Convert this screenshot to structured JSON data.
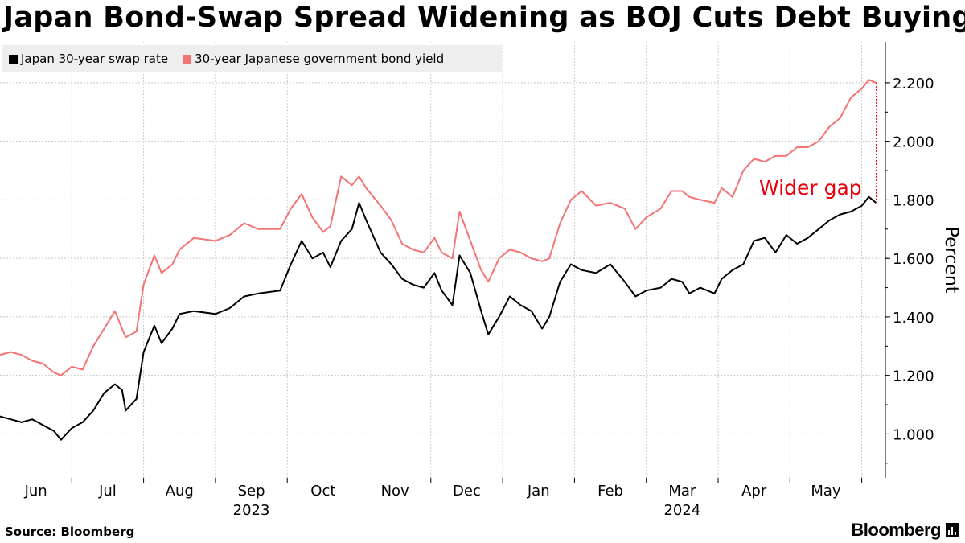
{
  "title": "Japan Bond-Swap Spread Widening as BOJ Cuts Debt Buying",
  "source": "Source: Bloomberg",
  "brand": "Bloomberg",
  "icons": {
    "brand": "bar-chart-icon"
  },
  "colors": {
    "swap": "#000000",
    "jgb": "#f47373",
    "annotation": "#e8000b",
    "grid": "#c8c8c8",
    "legend_bg": "#eeeeee"
  },
  "chart_data": {
    "type": "line",
    "title": "Japan Bond-Swap Spread Widening as BOJ Cuts Debt Buying",
    "ylabel": "Percent",
    "xlabel": "",
    "ylim": [
      0.85,
      2.34
    ],
    "x_range": [
      0,
      12.3
    ],
    "yticks": [
      1.0,
      1.2,
      1.4,
      1.6,
      1.8,
      2.0,
      2.2
    ],
    "ytick_labels": [
      "1.000",
      "1.200",
      "1.400",
      "1.600",
      "1.800",
      "2.000",
      "2.200"
    ],
    "months": [
      "Jun",
      "Jul",
      "Aug",
      "Sep",
      "Oct",
      "Nov",
      "Dec",
      "Jan",
      "Feb",
      "Mar",
      "Apr",
      "May"
    ],
    "years": [
      {
        "label": "2023",
        "month_index": 3
      },
      {
        "label": "2024",
        "month_index": 9
      }
    ],
    "legend": [
      "Japan 30-year swap rate",
      "30-year Japanese government bond yield"
    ],
    "annotation": {
      "text": "Wider gap",
      "x": 12.2,
      "y_top": 2.2,
      "y_bottom": 1.79
    },
    "series": [
      {
        "name": "Japan 30-year swap rate",
        "points": [
          [
            0,
            1.06
          ],
          [
            0.15,
            1.05
          ],
          [
            0.3,
            1.04
          ],
          [
            0.45,
            1.05
          ],
          [
            0.6,
            1.03
          ],
          [
            0.75,
            1.01
          ],
          [
            0.85,
            0.98
          ],
          [
            1.0,
            1.02
          ],
          [
            1.15,
            1.04
          ],
          [
            1.3,
            1.08
          ],
          [
            1.45,
            1.14
          ],
          [
            1.6,
            1.17
          ],
          [
            1.7,
            1.15
          ],
          [
            1.75,
            1.08
          ],
          [
            1.9,
            1.12
          ],
          [
            2.0,
            1.28
          ],
          [
            2.15,
            1.37
          ],
          [
            2.25,
            1.31
          ],
          [
            2.4,
            1.36
          ],
          [
            2.5,
            1.41
          ],
          [
            2.7,
            1.42
          ],
          [
            3.0,
            1.41
          ],
          [
            3.2,
            1.43
          ],
          [
            3.4,
            1.47
          ],
          [
            3.6,
            1.48
          ],
          [
            3.9,
            1.49
          ],
          [
            4.05,
            1.58
          ],
          [
            4.2,
            1.66
          ],
          [
            4.35,
            1.6
          ],
          [
            4.5,
            1.62
          ],
          [
            4.6,
            1.57
          ],
          [
            4.75,
            1.66
          ],
          [
            4.9,
            1.7
          ],
          [
            5.0,
            1.79
          ],
          [
            5.1,
            1.73
          ],
          [
            5.3,
            1.62
          ],
          [
            5.45,
            1.58
          ],
          [
            5.6,
            1.53
          ],
          [
            5.75,
            1.51
          ],
          [
            5.9,
            1.5
          ],
          [
            6.05,
            1.55
          ],
          [
            6.15,
            1.49
          ],
          [
            6.3,
            1.44
          ],
          [
            6.4,
            1.61
          ],
          [
            6.55,
            1.55
          ],
          [
            6.7,
            1.42
          ],
          [
            6.8,
            1.34
          ],
          [
            6.95,
            1.4
          ],
          [
            7.1,
            1.47
          ],
          [
            7.25,
            1.44
          ],
          [
            7.4,
            1.42
          ],
          [
            7.55,
            1.36
          ],
          [
            7.65,
            1.4
          ],
          [
            7.8,
            1.52
          ],
          [
            7.95,
            1.58
          ],
          [
            8.1,
            1.56
          ],
          [
            8.3,
            1.55
          ],
          [
            8.5,
            1.58
          ],
          [
            8.7,
            1.52
          ],
          [
            8.85,
            1.47
          ],
          [
            9.0,
            1.49
          ],
          [
            9.2,
            1.5
          ],
          [
            9.35,
            1.53
          ],
          [
            9.5,
            1.52
          ],
          [
            9.6,
            1.48
          ],
          [
            9.75,
            1.5
          ],
          [
            9.95,
            1.48
          ],
          [
            10.05,
            1.53
          ],
          [
            10.2,
            1.56
          ],
          [
            10.35,
            1.58
          ],
          [
            10.5,
            1.66
          ],
          [
            10.65,
            1.67
          ],
          [
            10.8,
            1.62
          ],
          [
            10.95,
            1.68
          ],
          [
            11.1,
            1.65
          ],
          [
            11.25,
            1.67
          ],
          [
            11.4,
            1.7
          ],
          [
            11.55,
            1.73
          ],
          [
            11.7,
            1.75
          ],
          [
            11.85,
            1.76
          ],
          [
            12.0,
            1.78
          ],
          [
            12.1,
            1.81
          ],
          [
            12.2,
            1.79
          ]
        ]
      },
      {
        "name": "30-year Japanese government bond yield",
        "points": [
          [
            0,
            1.27
          ],
          [
            0.15,
            1.28
          ],
          [
            0.3,
            1.27
          ],
          [
            0.45,
            1.25
          ],
          [
            0.6,
            1.24
          ],
          [
            0.75,
            1.21
          ],
          [
            0.85,
            1.2
          ],
          [
            1.0,
            1.23
          ],
          [
            1.15,
            1.22
          ],
          [
            1.3,
            1.3
          ],
          [
            1.45,
            1.36
          ],
          [
            1.6,
            1.42
          ],
          [
            1.7,
            1.36
          ],
          [
            1.75,
            1.33
          ],
          [
            1.9,
            1.35
          ],
          [
            2.0,
            1.51
          ],
          [
            2.15,
            1.61
          ],
          [
            2.25,
            1.55
          ],
          [
            2.4,
            1.58
          ],
          [
            2.5,
            1.63
          ],
          [
            2.7,
            1.67
          ],
          [
            3.0,
            1.66
          ],
          [
            3.2,
            1.68
          ],
          [
            3.4,
            1.72
          ],
          [
            3.6,
            1.7
          ],
          [
            3.9,
            1.7
          ],
          [
            4.05,
            1.77
          ],
          [
            4.2,
            1.82
          ],
          [
            4.35,
            1.74
          ],
          [
            4.5,
            1.69
          ],
          [
            4.6,
            1.71
          ],
          [
            4.75,
            1.88
          ],
          [
            4.9,
            1.85
          ],
          [
            5.0,
            1.88
          ],
          [
            5.1,
            1.84
          ],
          [
            5.3,
            1.78
          ],
          [
            5.45,
            1.73
          ],
          [
            5.6,
            1.65
          ],
          [
            5.75,
            1.63
          ],
          [
            5.9,
            1.62
          ],
          [
            6.05,
            1.67
          ],
          [
            6.15,
            1.62
          ],
          [
            6.3,
            1.6
          ],
          [
            6.4,
            1.76
          ],
          [
            6.55,
            1.66
          ],
          [
            6.7,
            1.56
          ],
          [
            6.8,
            1.52
          ],
          [
            6.95,
            1.6
          ],
          [
            7.1,
            1.63
          ],
          [
            7.25,
            1.62
          ],
          [
            7.4,
            1.6
          ],
          [
            7.55,
            1.59
          ],
          [
            7.65,
            1.6
          ],
          [
            7.8,
            1.72
          ],
          [
            7.95,
            1.8
          ],
          [
            8.1,
            1.83
          ],
          [
            8.3,
            1.78
          ],
          [
            8.5,
            1.79
          ],
          [
            8.7,
            1.77
          ],
          [
            8.85,
            1.7
          ],
          [
            9.0,
            1.74
          ],
          [
            9.2,
            1.77
          ],
          [
            9.35,
            1.83
          ],
          [
            9.5,
            1.83
          ],
          [
            9.6,
            1.81
          ],
          [
            9.75,
            1.8
          ],
          [
            9.95,
            1.79
          ],
          [
            10.05,
            1.84
          ],
          [
            10.2,
            1.81
          ],
          [
            10.35,
            1.9
          ],
          [
            10.5,
            1.94
          ],
          [
            10.65,
            1.93
          ],
          [
            10.8,
            1.95
          ],
          [
            10.95,
            1.95
          ],
          [
            11.1,
            1.98
          ],
          [
            11.25,
            1.98
          ],
          [
            11.4,
            2.0
          ],
          [
            11.55,
            2.05
          ],
          [
            11.7,
            2.08
          ],
          [
            11.85,
            2.15
          ],
          [
            12.0,
            2.18
          ],
          [
            12.1,
            2.21
          ],
          [
            12.2,
            2.2
          ]
        ]
      }
    ]
  }
}
